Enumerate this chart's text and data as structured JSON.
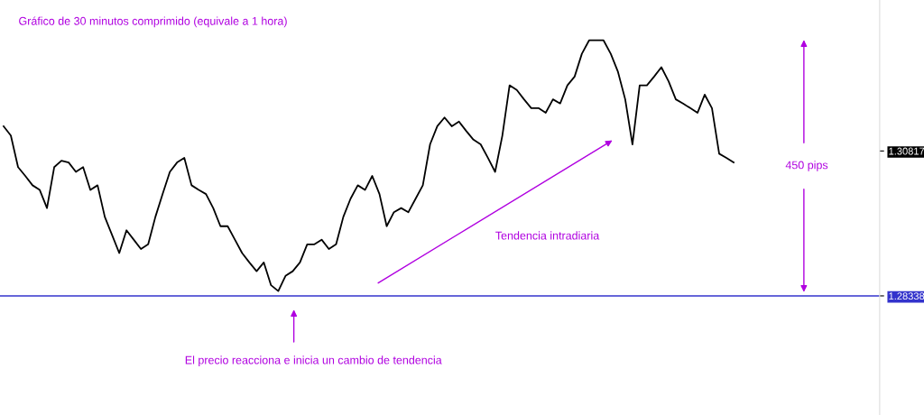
{
  "chart_data": {
    "type": "line",
    "title": "Gráfico de 30 minutos comprimido (equivale a 1 hora)",
    "annotations": [
      "Tendencia intradiaria",
      "450 pips",
      "El precio reacciona e inicia un cambio de tendencia"
    ],
    "categories": [
      null,
      null,
      null,
      null,
      null,
      null,
      null,
      null,
      null,
      null,
      null,
      null,
      null,
      null,
      null,
      null,
      null,
      null,
      null,
      null,
      null,
      null,
      null,
      null,
      null,
      null,
      null,
      null,
      null,
      null,
      null,
      null,
      null,
      null,
      null,
      null,
      null,
      null,
      null,
      null,
      null,
      null,
      null,
      null,
      null,
      null,
      null,
      null,
      null,
      null,
      null,
      null,
      null,
      null,
      null,
      null,
      null,
      null,
      null,
      null,
      null,
      null,
      null,
      null,
      null,
      null,
      null,
      null,
      null,
      null,
      null,
      null,
      null,
      null,
      null,
      null,
      null,
      null,
      null,
      null,
      null,
      null,
      null,
      null,
      null,
      null,
      null,
      null,
      null,
      null,
      null,
      null,
      null,
      null,
      null,
      null,
      null,
      null,
      null,
      null,
      null,
      null
    ],
    "series": [
      {
        "color": "#000000",
        "values": [
          1.3124,
          1.3108,
          1.3054,
          1.3039,
          1.3023,
          1.3015,
          1.2984,
          1.3054,
          1.3065,
          1.3062,
          1.3046,
          1.3054,
          1.3015,
          1.3023,
          1.2969,
          1.2938,
          1.2907,
          1.2946,
          1.293,
          1.2914,
          1.2922,
          1.2969,
          1.3008,
          1.3046,
          1.3062,
          1.307,
          1.3023,
          1.3015,
          1.3008,
          1.2984,
          1.2953,
          1.2953,
          1.293,
          1.2907,
          1.2891,
          1.2876,
          1.2891,
          1.2852,
          1.2842,
          1.2868,
          1.2876,
          1.2891,
          1.2922,
          1.2922,
          1.293,
          1.2914,
          1.2922,
          1.2969,
          1.3,
          1.3023,
          1.3015,
          1.3039,
          1.3008,
          1.2953,
          1.2977,
          1.2984,
          1.2977,
          1.3,
          1.3023,
          1.3093,
          1.3124,
          1.3139,
          1.3124,
          1.3132,
          1.3116,
          1.3101,
          1.3093,
          1.307,
          1.3046,
          1.3108,
          1.3194,
          1.3186,
          1.317,
          1.3155,
          1.3155,
          1.3147,
          1.317,
          1.3163,
          1.3194,
          1.3209,
          1.3248,
          1.3271,
          1.3271,
          1.3271,
          1.3248,
          1.3217,
          1.317,
          1.3093,
          1.3194,
          1.3194,
          1.3209,
          1.3225,
          1.3201,
          1.317,
          1.3163,
          1.3155,
          1.3147,
          1.3178,
          1.3155,
          1.3077,
          1.307,
          1.3062
        ]
      }
    ],
    "ylim": [
      1.263,
      1.334
    ],
    "yticks": [
      {
        "value": 1.28338,
        "label": "1.28338"
      },
      {
        "value": 1.30817,
        "label": "1.30817"
      }
    ],
    "ref_lines": [
      {
        "axis": "y",
        "value": 1.28338,
        "color": "#3333cc"
      }
    ],
    "grid": false,
    "legend": false,
    "marker": "none",
    "line_style": "solid"
  }
}
